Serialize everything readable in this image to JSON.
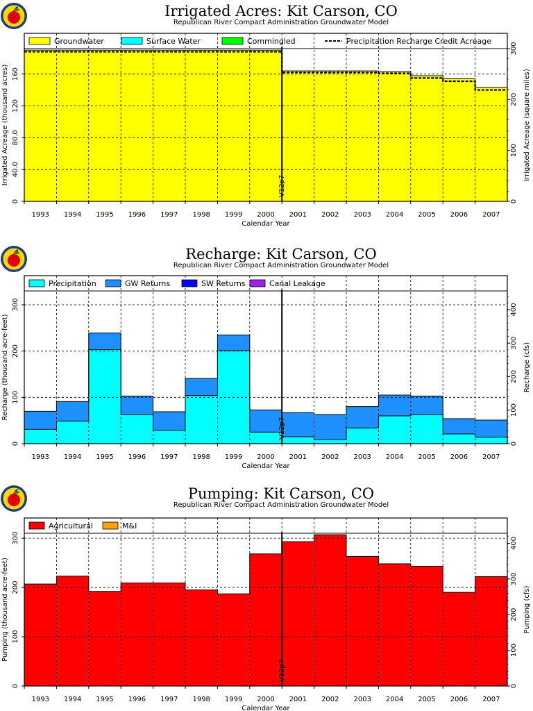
{
  "colors": {
    "groundwater": "#ffff00",
    "surface_water": "#00ffff",
    "commingled": "#00ff00",
    "precipitation": "#00ffff",
    "gw_returns": "#1e90ff",
    "sw_returns": "#0000ff",
    "canal_leakage": "#a020f0",
    "agricultural": "#ff0000",
    "mi": "#ffa500"
  },
  "logo": {
    "icon": "apple-logo-icon"
  },
  "chart_data": [
    {
      "id": "irrigated",
      "type": "area",
      "title": "Irrigated Acres: Kit Carson, CO",
      "subtitle": "Republican River Compact Administration Groundwater Model",
      "xlabel": "Calendar Year",
      "ylabel": "Irrigated Acreage (thousand acres)",
      "ylabel_right": "Irrigated Acreage (square miles)",
      "categories": [
        "1993",
        "1994",
        "1995",
        "1996",
        "1997",
        "1998",
        "1999",
        "2000",
        "2001",
        "2002",
        "2003",
        "2004",
        "2005",
        "2006",
        "2007"
      ],
      "ylim": [
        0,
        192
      ],
      "yticks": [
        0,
        40,
        80,
        120,
        160
      ],
      "ytick_labels": [
        "0",
        "40.0",
        "80.0",
        "120",
        "160"
      ],
      "right_ticks": [
        0,
        100,
        200,
        300
      ],
      "right_factor": 1.5625,
      "grid": true,
      "legend_position": "top",
      "marker": {
        "label": "V12p7",
        "after": "2000"
      },
      "series": [
        {
          "name": "Groundwater",
          "color_key": "groundwater",
          "values": [
            190,
            190,
            190,
            190,
            190,
            190,
            190,
            190,
            164,
            164,
            164,
            163,
            158,
            154,
            143
          ]
        },
        {
          "name": "Surface Water",
          "color_key": "surface_water",
          "values": [
            0,
            0,
            0,
            0,
            0,
            0,
            0,
            0,
            0,
            0,
            0,
            0,
            0,
            0,
            0
          ]
        },
        {
          "name": "Commingled",
          "color_key": "commingled",
          "values": [
            0,
            0,
            0,
            0,
            0,
            0,
            0,
            0,
            0,
            0,
            0,
            0,
            0,
            0,
            0
          ]
        }
      ],
      "line_series": {
        "name": "Precipitation Recharge Credit Acreage",
        "values": [
          188,
          188,
          188,
          188,
          188,
          188,
          188,
          188,
          162,
          162,
          162,
          161,
          155,
          151,
          140
        ]
      }
    },
    {
      "id": "recharge",
      "type": "area",
      "title": "Recharge: Kit Carson, CO",
      "subtitle": "Republican River Compact Administration Groundwater Model",
      "xlabel": "Calendar Year",
      "ylabel": "Recharge (thousand acre-feet)",
      "ylabel_right": "Recharge (cfs)",
      "categories": [
        "1993",
        "1994",
        "1995",
        "1996",
        "1997",
        "1998",
        "1999",
        "2000",
        "2001",
        "2002",
        "2003",
        "2004",
        "2005",
        "2006",
        "2007"
      ],
      "ylim": [
        0,
        330
      ],
      "yticks": [
        0,
        100,
        200,
        300
      ],
      "ytick_labels": [
        "0",
        "100",
        "200",
        "300"
      ],
      "right_ticks": [
        0,
        100,
        200,
        300,
        400
      ],
      "right_factor": 1.381,
      "grid": true,
      "legend_position": "top",
      "marker": {
        "label": "V12p7",
        "after": "2000"
      },
      "series": [
        {
          "name": "Precipitation",
          "color_key": "precipitation",
          "values": [
            31,
            49,
            203,
            63,
            29,
            104,
            201,
            25,
            15,
            9,
            34,
            60,
            63,
            21,
            14
          ]
        },
        {
          "name": "GW Returns",
          "color_key": "gw_returns",
          "values": [
            39,
            42,
            36,
            40,
            40,
            37,
            34,
            48,
            52,
            54,
            46,
            45,
            40,
            33,
            37
          ]
        },
        {
          "name": "SW Returns",
          "color_key": "sw_returns",
          "values": [
            0,
            0,
            0,
            0,
            0,
            0,
            0,
            0,
            0,
            0,
            0,
            0,
            0,
            0,
            0
          ]
        },
        {
          "name": "Canal Leakage",
          "color_key": "canal_leakage",
          "values": [
            0,
            0,
            0,
            0,
            0,
            0,
            0,
            0,
            0,
            0,
            0,
            0,
            0,
            0,
            0
          ]
        }
      ]
    },
    {
      "id": "pumping",
      "type": "area",
      "title": "Pumping: Kit Carson, CO",
      "subtitle": "Republican River Compact Administration Groundwater Model",
      "xlabel": "Calendar Year",
      "ylabel": "Pumping (thousand acre-feet)",
      "ylabel_right": "Pumping (cfs)",
      "categories": [
        "1993",
        "1994",
        "1995",
        "1996",
        "1997",
        "1998",
        "1999",
        "2000",
        "2001",
        "2002",
        "2003",
        "2004",
        "2005",
        "2006",
        "2007"
      ],
      "ylim": [
        0,
        310
      ],
      "yticks": [
        0,
        100,
        200,
        300
      ],
      "ytick_labels": [
        "0",
        "100",
        "200",
        "300"
      ],
      "right_ticks": [
        0,
        100,
        200,
        300,
        400
      ],
      "right_factor": 1.381,
      "grid": true,
      "legend_position": "top",
      "marker": {
        "label": "V12p7",
        "after": "2000"
      },
      "series": [
        {
          "name": "Agricultural",
          "color_key": "agricultural",
          "values": [
            207,
            223,
            192,
            209,
            209,
            195,
            187,
            268,
            293,
            307,
            263,
            248,
            243,
            190,
            222
          ]
        },
        {
          "name": "M&I",
          "color_key": "mi",
          "values": [
            0,
            0,
            0,
            0,
            0,
            0,
            0,
            0,
            0,
            0,
            0,
            0,
            0,
            0,
            0
          ]
        }
      ]
    }
  ]
}
